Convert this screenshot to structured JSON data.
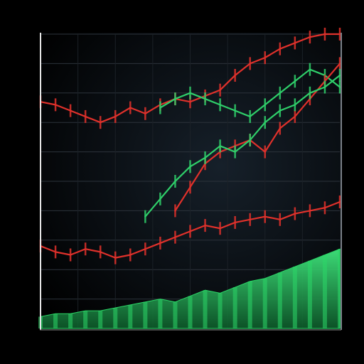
{
  "chart_data": {
    "type": "line",
    "title": "",
    "subtitle": "",
    "xlabel": "",
    "ylabel": "",
    "grid": true,
    "legend_placement": "top-left",
    "legend_text": "",
    "y_ticks": [],
    "x_ticks": [],
    "ylim": [
      0,
      100
    ],
    "xlim": [
      0,
      100
    ],
    "series": [
      {
        "key": "upper_red",
        "color": "#e0312b",
        "x": [
          0,
          5,
          10,
          15,
          20,
          25,
          30,
          35,
          40,
          45,
          50,
          55,
          60,
          65,
          70,
          75,
          80,
          85,
          90,
          95,
          100
        ],
        "values": [
          77,
          76,
          74,
          72,
          70,
          72,
          75,
          73,
          76,
          78,
          77,
          79,
          81,
          86,
          90,
          92,
          95,
          97,
          99,
          100,
          100
        ]
      },
      {
        "key": "upper_green",
        "color": "#2fcf6a",
        "x": [
          40,
          45,
          50,
          55,
          60,
          65,
          70,
          75,
          80,
          85,
          90,
          95,
          100
        ],
        "values": [
          75,
          78,
          80,
          78,
          76,
          74,
          72,
          76,
          80,
          84,
          88,
          86,
          82
        ]
      },
      {
        "key": "mid_red",
        "color": "#e0312b",
        "x": [
          45,
          50,
          55,
          60,
          65,
          70,
          75,
          80,
          85,
          90,
          95,
          100
        ],
        "values": [
          40,
          48,
          56,
          60,
          62,
          64,
          60,
          68,
          72,
          78,
          84,
          90
        ]
      },
      {
        "key": "mid_green",
        "color": "#2fcf6a",
        "x": [
          35,
          40,
          45,
          50,
          55,
          60,
          65,
          70,
          75,
          80,
          85,
          90,
          95,
          100
        ],
        "values": [
          38,
          44,
          50,
          55,
          58,
          62,
          60,
          64,
          70,
          74,
          76,
          80,
          82,
          86
        ]
      },
      {
        "key": "lower_red",
        "color": "#e0312b",
        "x": [
          0,
          5,
          10,
          15,
          20,
          25,
          30,
          35,
          40,
          45,
          50,
          55,
          60,
          65,
          70,
          75,
          80,
          85,
          90,
          95,
          100
        ],
        "values": [
          28,
          26,
          25,
          27,
          26,
          24,
          25,
          27,
          29,
          31,
          33,
          35,
          34,
          36,
          37,
          38,
          37,
          39,
          40,
          41,
          43
        ]
      }
    ],
    "volume_area": {
      "color": "#2bd767",
      "x": [
        0,
        5,
        10,
        15,
        20,
        25,
        30,
        35,
        40,
        45,
        50,
        55,
        60,
        65,
        70,
        75,
        80,
        85,
        90,
        95,
        100
      ],
      "values": [
        4,
        5,
        5,
        6,
        6,
        7,
        8,
        9,
        10,
        9,
        11,
        13,
        12,
        14,
        16,
        17,
        19,
        21,
        23,
        25,
        27
      ]
    }
  }
}
